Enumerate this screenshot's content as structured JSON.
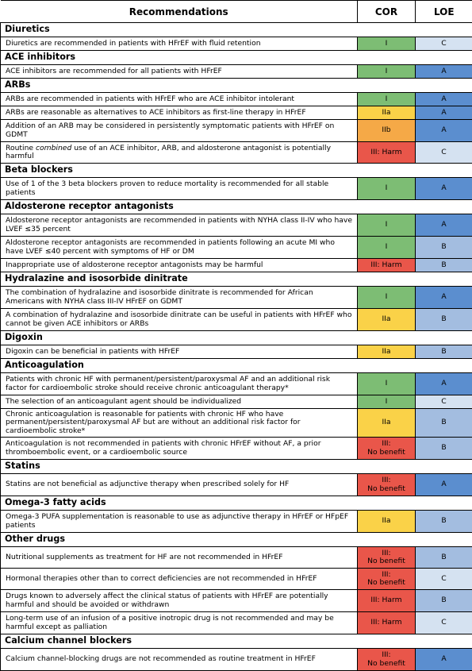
{
  "header": {
    "recommendations": "Recommendations",
    "cor": "COR",
    "loe": "LOE"
  },
  "colors": {
    "I": "#7dbd74",
    "IIa": "#fad248",
    "IIb": "#f5a947",
    "III": "#e9564a",
    "A": "#5b8ecf",
    "B": "#a3bde0",
    "C": "#d5e2f1"
  },
  "sections": [
    {
      "title": "Diuretics",
      "rows": [
        {
          "text": "Diuretics are recommended in patients with HFrEF with fluid retention",
          "cor": "I",
          "loe": "C"
        }
      ]
    },
    {
      "title": "ACE inhibitors",
      "rows": [
        {
          "text": "ACE inhibitors are recommended for all patients with HFrEF",
          "cor": "I",
          "loe": "A"
        }
      ]
    },
    {
      "title": "ARBs",
      "rows": [
        {
          "text": "ARBs are recommended in patients with HFrEF who are ACE inhibitor intolerant",
          "cor": "I",
          "loe": "A"
        },
        {
          "text": "ARBs are reasonable as alternatives to ACE inhibitors as first-line therapy in HFrEF",
          "cor": "IIa",
          "loe": "A"
        },
        {
          "text": "Addition of an ARB may be considered in persistently symptomatic patients with HFrEF on GDMT",
          "cor": "IIb",
          "loe": "A"
        },
        {
          "text_before": "Routine ",
          "text_em": "combined",
          "text_after": " use of an ACE inhibitor, ARB, and aldosterone antagonist is potentially harmful",
          "cor": "III: Harm",
          "loe": "C"
        }
      ]
    },
    {
      "title": "Beta blockers",
      "rows": [
        {
          "text": "Use of 1 of the 3 beta blockers proven to reduce mortality is recommended for all stable patients",
          "cor": "I",
          "loe": "A"
        }
      ]
    },
    {
      "title": "Aldosterone receptor antagonists",
      "rows": [
        {
          "text": "Aldosterone receptor antagonists are recommended in patients with NYHA class II-IV who have LVEF ≤35 percent",
          "cor": "I",
          "loe": "A"
        },
        {
          "text": "Aldosterone receptor antagonists are recommended in patients following an acute MI who have LVEF ≤40 percent with symptoms of HF or DM",
          "cor": "I",
          "loe": "B"
        },
        {
          "text": "Inappropriate use of aldosterone receptor antagonists may be harmful",
          "cor": "III: Harm",
          "loe": "B"
        }
      ]
    },
    {
      "title": "Hydralazine and isosorbide dinitrate",
      "rows": [
        {
          "text": "The combination of hydralazine and isosorbide dinitrate is recommended for African Americans with NYHA class III-IV HFrEF on GDMT",
          "cor": "I",
          "loe": "A"
        },
        {
          "text": "A combination of hydralazine and isosorbide dinitrate can be useful in patients with HFrEF who cannot be given ACE inhibitors or ARBs",
          "cor": "IIa",
          "loe": "B"
        }
      ]
    },
    {
      "title": "Digoxin",
      "rows": [
        {
          "text": "Digoxin can be beneficial in patients with HFrEF",
          "cor": "IIa",
          "loe": "B"
        }
      ]
    },
    {
      "title": "Anticoagulation",
      "rows": [
        {
          "text": "Patients with chronic HF with permanent/persistent/paroxysmal AF and an additional risk factor for cardioembolic stroke should receive chronic anticoagulant therapy*",
          "cor": "I",
          "loe": "A"
        },
        {
          "text": "The selection of an anticoagulant agent should be individualized",
          "cor": "I",
          "loe": "C"
        },
        {
          "text": "Chronic anticoagulation is reasonable for patients with chronic HF who have permanent/persistent/paroxysmal AF but are without an additional risk factor for cardioembolic stroke*",
          "cor": "IIa",
          "loe": "B"
        },
        {
          "text": "Anticoagulation is not recommended in patients with chronic HFrEF without AF, a prior thromboembolic event, or a cardioembolic source",
          "cor": "III:\nNo benefit",
          "loe": "B"
        }
      ]
    },
    {
      "title": "Statins",
      "rows": [
        {
          "text": "Statins are not beneficial as adjunctive therapy when prescribed solely for HF",
          "cor": "III:\nNo benefit",
          "loe": "A"
        }
      ]
    },
    {
      "title": "Omega-3 fatty acids",
      "rows": [
        {
          "text": "Omega-3 PUFA supplementation is reasonable to use as adjunctive therapy in HFrEF or HFpEF patients",
          "cor": "IIa",
          "loe": "B"
        }
      ]
    },
    {
      "title": "Other drugs",
      "rows": [
        {
          "text": "Nutritional supplements as treatment for HF are not recommended in HFrEF",
          "cor": "III:\nNo benefit",
          "loe": "B"
        },
        {
          "text": "Hormonal therapies other than to correct deficiencies are not recommended in HFrEF",
          "cor": "III:\nNo benefit",
          "loe": "C"
        },
        {
          "text": "Drugs known to adversely affect the clinical status of patients with HFrEF are potentially harmful and should be avoided or withdrawn",
          "cor": "III: Harm",
          "loe": "B"
        },
        {
          "text": "Long-term use of an infusion of a positive inotropic drug is not recommended and may be harmful except as palliation",
          "cor": "III: Harm",
          "loe": "C"
        }
      ]
    },
    {
      "title": "Calcium channel blockers",
      "rows": [
        {
          "text": "Calcium channel-blocking drugs are not recommended as routine treatment in HFrEF",
          "cor": "III:\nNo benefit",
          "loe": "A"
        }
      ]
    }
  ]
}
